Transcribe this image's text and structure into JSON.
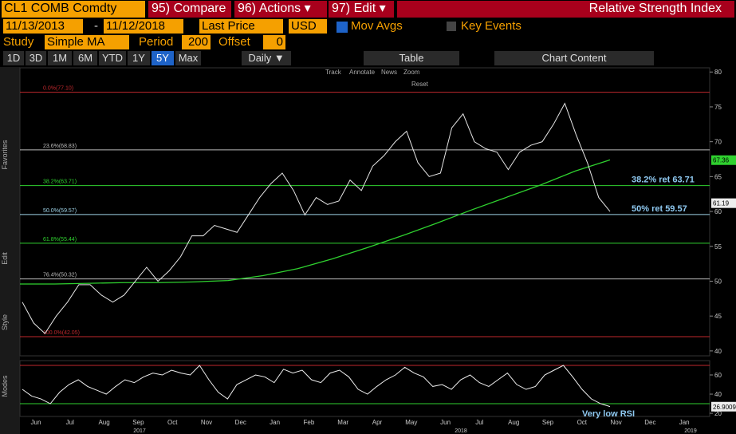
{
  "header": {
    "ticker": "CL1 COMB Comdty",
    "buttons": [
      "95) Compare",
      "96) Actions ▾",
      "97) Edit ▾"
    ],
    "title": "Relative Strength Index"
  },
  "controls": {
    "start_date": "11/13/2013",
    "separator": "-",
    "end_date": "11/12/2018",
    "field": "Last Price",
    "currency": "USD",
    "mov_avgs": "Mov Avgs",
    "key_events": "Key Events",
    "study_label": "Study",
    "study": "Simple MA",
    "period_label": "Period",
    "period": 200,
    "offset_label": "Offset",
    "offset": 0
  },
  "ranges": [
    "1D",
    "3D",
    "1M",
    "6M",
    "YTD",
    "1Y",
    "5Y",
    "Max"
  ],
  "active_range": 6,
  "frequency": "Daily ▼",
  "table": "Table",
  "chart_content": "Chart Content",
  "chart_tools": [
    "Track",
    "Annotate",
    "News",
    "Zoom"
  ],
  "reset": "Reset",
  "side_labels": [
    "Favorites",
    "Edit",
    "Style",
    "Modes"
  ],
  "chart_data": {
    "type": "line",
    "price": {
      "color": "#e6e6e6",
      "values": [
        47,
        44,
        42.5,
        45,
        47,
        49.5,
        49.5,
        48,
        47,
        48,
        50,
        52,
        50,
        51.5,
        53.5,
        56.5,
        56.5,
        58,
        57.5,
        57,
        59.5,
        62,
        64,
        65.5,
        63,
        59.5,
        62,
        61,
        61.5,
        64.5,
        63,
        66.5,
        68,
        70,
        71.5,
        67,
        65,
        65.5,
        72,
        74,
        70,
        69,
        68.5,
        66,
        68.5,
        69.5,
        70,
        72.5,
        75.5,
        71,
        67,
        62,
        60
      ]
    },
    "moving_average": {
      "color": "#2fd12f",
      "values": [
        49.6,
        49.6,
        49.7,
        49.8,
        49.8,
        49.9,
        50.1,
        50.8,
        51.8,
        53.2,
        54.8,
        56.5,
        58.3,
        60.2,
        62,
        63.8,
        65.8,
        67.4
      ]
    },
    "ylim": [
      39.3,
      80.6
    ],
    "yticks": [
      40,
      45,
      50,
      55,
      60,
      65,
      70,
      75,
      80
    ],
    "fib_levels": [
      {
        "label": "0.0%(77.10)",
        "value": 77.1,
        "color": "#c0282d"
      },
      {
        "label": "23.6%(68.83)",
        "value": 68.83,
        "color": "#bbbbbb"
      },
      {
        "label": "38.2%(63.71)",
        "value": 63.71,
        "color": "#2fd12f"
      },
      {
        "label": "50.0%(59.57)",
        "value": 59.57,
        "color": "#9fd4e8"
      },
      {
        "label": "61.8%(55.44)",
        "value": 55.44,
        "color": "#2fd12f"
      },
      {
        "label": "76.4%(50.32)",
        "value": 50.32,
        "color": "#bbbbbb"
      },
      {
        "label": "100.0%(42.05)",
        "value": 42.05,
        "color": "#c0282d"
      }
    ],
    "annotations": [
      {
        "text": "38.2% ret 63.71",
        "value": 63.71
      },
      {
        "text": "50% ret 59.57",
        "value": 59.57
      }
    ],
    "ma_last": 67.36,
    "price_last": 61.19,
    "rsi": {
      "color": "#eeeeee",
      "values": [
        45,
        38,
        35,
        30,
        42,
        50,
        55,
        48,
        44,
        40,
        48,
        55,
        52,
        58,
        62,
        60,
        65,
        62,
        60,
        70,
        55,
        42,
        35,
        50,
        55,
        60,
        58,
        52,
        66,
        62,
        65,
        55,
        52,
        62,
        65,
        58,
        45,
        40,
        48,
        55,
        60,
        68,
        62,
        58,
        48,
        50,
        45,
        55,
        60,
        52,
        48,
        55,
        62,
        50,
        45,
        48,
        60,
        65,
        70,
        58,
        45,
        35,
        30,
        27
      ],
      "ylim": [
        16.7,
        75
      ],
      "yticks": [
        20,
        40,
        60
      ],
      "overbought": 70,
      "oversold": 30,
      "last": 26.9009,
      "annotation": "Very low RSI"
    },
    "categories": [
      "Jun",
      "Jul",
      "Aug",
      "Sep",
      "Oct",
      "Nov",
      "Dec",
      "Jan",
      "Feb",
      "Mar",
      "Apr",
      "May",
      "Jun",
      "Jul",
      "Aug",
      "Sep",
      "Oct",
      "Nov",
      "Dec",
      "Jan"
    ],
    "years": [
      "2017",
      "2018",
      "2019"
    ]
  }
}
